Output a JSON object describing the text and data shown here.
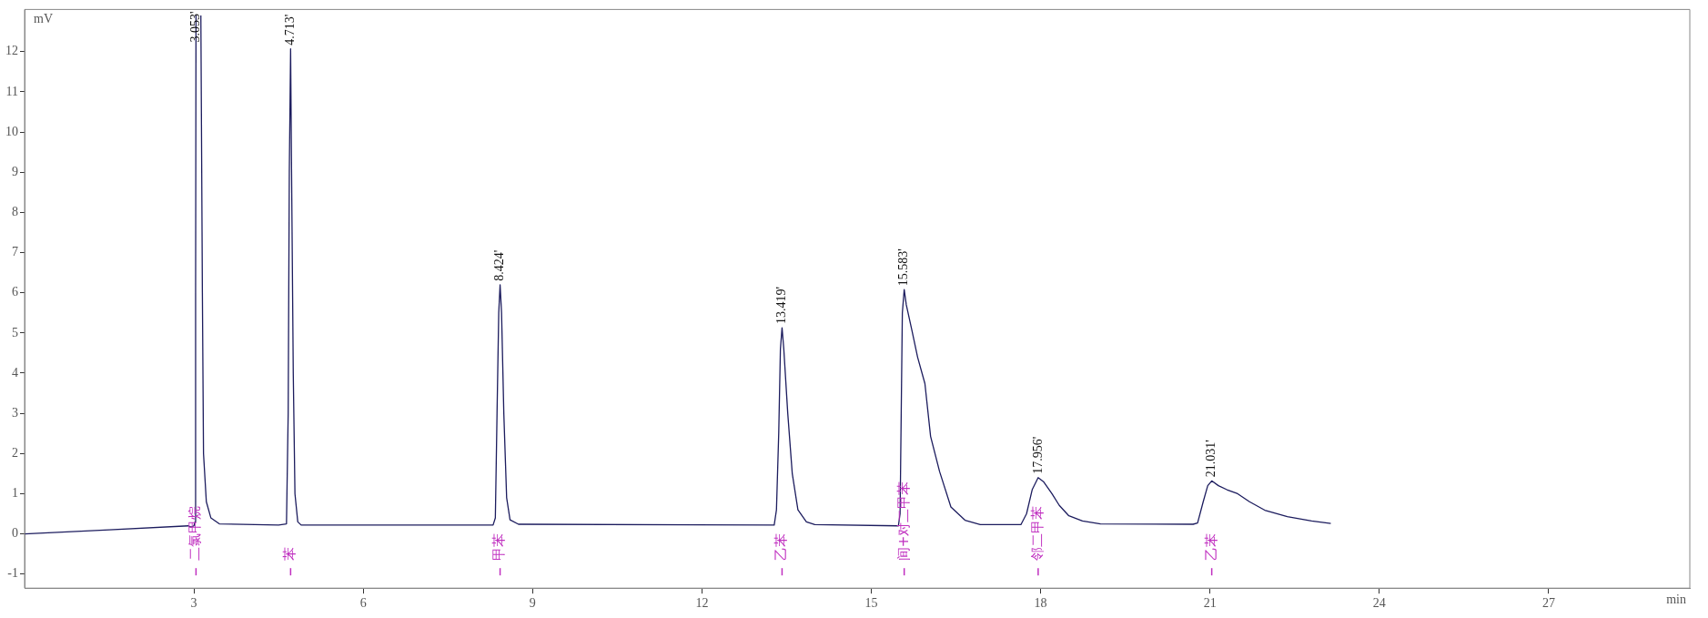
{
  "chart_data": {
    "type": "line",
    "xlabel": "min",
    "ylabel": "mV",
    "xlim": [
      0,
      29.5
    ],
    "ylim": [
      -1.35,
      13.05
    ],
    "xticks": [
      3,
      6,
      9,
      12,
      15,
      18,
      21,
      24,
      27
    ],
    "yticks": [
      -1,
      0,
      1,
      2,
      3,
      4,
      5,
      6,
      7,
      8,
      9,
      10,
      11,
      12
    ],
    "grid": false,
    "legend": false,
    "marker": "none",
    "line_style": "solid",
    "series": [
      {
        "color": "#1c1c5e",
        "x": [
          0,
          1.5,
          2.9,
          2.95,
          3.0,
          3.02,
          3.03,
          3.037,
          3.04,
          3.12,
          3.123,
          3.15,
          3.17,
          3.22,
          3.3,
          3.45,
          4.5,
          4.64,
          4.67,
          4.69,
          4.713,
          4.73,
          4.76,
          4.79,
          4.84,
          4.9,
          8.3,
          8.34,
          8.37,
          8.4,
          8.424,
          8.45,
          8.49,
          8.54,
          8.6,
          8.75,
          13.28,
          13.32,
          13.36,
          13.39,
          13.419,
          13.45,
          13.52,
          13.6,
          13.7,
          13.85,
          14.0,
          15.48,
          15.51,
          15.53,
          15.55,
          15.583,
          15.62,
          15.72,
          15.82,
          15.95,
          16.05,
          16.21,
          16.41,
          16.66,
          16.93,
          17.65,
          17.75,
          17.85,
          17.956,
          18.05,
          18.2,
          18.33,
          18.5,
          18.74,
          19.06,
          20.7,
          20.78,
          20.88,
          20.96,
          21.031,
          21.15,
          21.3,
          21.49,
          21.7,
          21.97,
          22.37,
          22.8,
          23.14
        ],
        "values": [
          0,
          0.1,
          0.2,
          0.17,
          0.2,
          0.3,
          6,
          12.9,
          null,
          null,
          12.9,
          6,
          2,
          0.8,
          0.4,
          0.25,
          0.22,
          0.25,
          3,
          9,
          12.07,
          9,
          4,
          1,
          0.3,
          0.22,
          0.22,
          0.4,
          3,
          5.5,
          6.2,
          5.5,
          3,
          0.9,
          0.35,
          0.24,
          0.22,
          0.6,
          2.5,
          4.6,
          5.13,
          4.6,
          3,
          1.5,
          0.6,
          0.3,
          0.23,
          0.2,
          0.5,
          3,
          5.5,
          6.08,
          5.7,
          5.06,
          4.4,
          3.74,
          2.43,
          1.55,
          0.67,
          0.34,
          0.23,
          0.23,
          0.5,
          1.1,
          1.4,
          1.3,
          1.0,
          0.71,
          0.45,
          0.32,
          0.25,
          0.24,
          0.27,
          0.8,
          1.2,
          1.32,
          1.2,
          1.1,
          1.0,
          0.8,
          0.59,
          0.43,
          0.32,
          0.26
        ]
      }
    ],
    "annotations": [
      {
        "text": "3.053'",
        "x": 3.037,
        "y": 12.9
      },
      {
        "text": "4.713'",
        "x": 4.713,
        "y": 12.07
      },
      {
        "text": "8.424'",
        "x": 8.424,
        "y": 6.2
      },
      {
        "text": "13.419'",
        "x": 13.419,
        "y": 5.13
      },
      {
        "text": "15.583'",
        "x": 15.583,
        "y": 6.08
      },
      {
        "text": "17.956'",
        "x": 17.956,
        "y": 1.4
      },
      {
        "text": "21.031'",
        "x": 21.031,
        "y": 1.32
      },
      "二氯甲烷",
      "苯",
      "甲苯",
      "乙苯",
      "间+对二甲苯",
      "邻二甲苯",
      "乙苯"
    ]
  }
}
